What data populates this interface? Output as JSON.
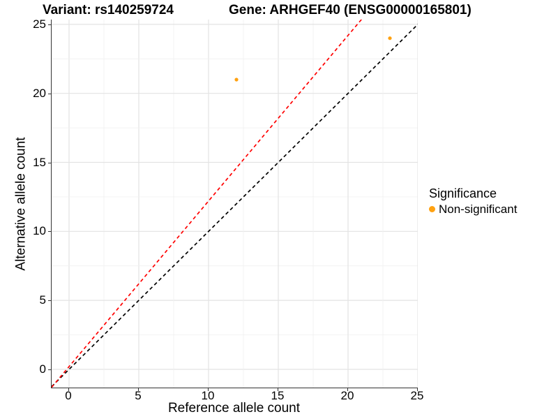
{
  "chart_data": {
    "type": "scatter",
    "titles": {
      "left": "Variant: rs140259724",
      "right": "Gene: ARHGEF40 (ENSG00000165801)"
    },
    "xlabel": "Reference allele count",
    "ylabel": "Alternative allele count",
    "xlim": [
      -1.25,
      25.0
    ],
    "ylim": [
      -1.32,
      25.35
    ],
    "x_tick_values": [
      0,
      5,
      10,
      15,
      20,
      25
    ],
    "y_tick_values": [
      0,
      5,
      10,
      15,
      20,
      25
    ],
    "grid": {
      "minor_step": 2.5,
      "major_step": 5,
      "major_color": "#e3e3e3",
      "minor_color": "#f0f0f0",
      "visible": true
    },
    "axis_color": "#333333",
    "series": [
      {
        "name": "Non-significant",
        "color": "#FFA110",
        "points": [
          {
            "x": 12,
            "y": 21
          },
          {
            "x": 23,
            "y": 24
          }
        ]
      }
    ],
    "lines": [
      {
        "name": "identity-line",
        "slope": 1.0,
        "intercept": 0.0,
        "color": "#000000",
        "style": "dashed"
      },
      {
        "name": "fitted-line",
        "slope": 1.2,
        "intercept": 0.2,
        "color": "#FF0000",
        "style": "dashed"
      }
    ],
    "legend": {
      "position": "right",
      "title": "Significance",
      "items": [
        {
          "label": "Non-significant",
          "color": "#FFA110"
        }
      ]
    }
  }
}
